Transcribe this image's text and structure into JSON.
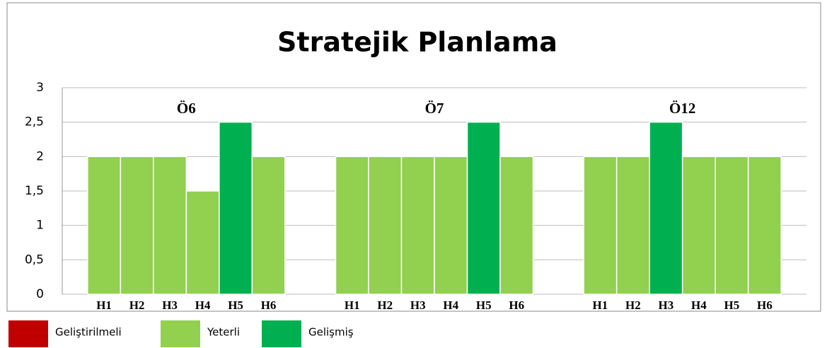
{
  "chart_data": {
    "type": "bar",
    "title": "Stratejik Planlama",
    "groups": [
      {
        "name": "Ö6",
        "categories": [
          "H1",
          "H2",
          "H3",
          "H4",
          "H5",
          "H6"
        ],
        "values": [
          2,
          2,
          2,
          1.5,
          2.5,
          2
        ],
        "colors": [
          "#92d050",
          "#92d050",
          "#92d050",
          "#92d050",
          "#00b050",
          "#92d050"
        ]
      },
      {
        "name": "Ö7",
        "categories": [
          "H1",
          "H2",
          "H3",
          "H4",
          "H5",
          "H6"
        ],
        "values": [
          2,
          2,
          2,
          2,
          2.5,
          2
        ],
        "colors": [
          "#92d050",
          "#92d050",
          "#92d050",
          "#92d050",
          "#00b050",
          "#92d050"
        ]
      },
      {
        "name": "Ö12",
        "categories": [
          "H1",
          "H2",
          "H3",
          "H4",
          "H5",
          "H6"
        ],
        "values": [
          2,
          2,
          2.5,
          2,
          2,
          2
        ],
        "colors": [
          "#92d050",
          "#92d050",
          "#00b050",
          "#92d050",
          "#92d050",
          "#92d050"
        ]
      }
    ],
    "legend": [
      {
        "name": "Geliştirilmeli",
        "color": "#c00000"
      },
      {
        "name": "Yeterli",
        "color": "#92d050"
      },
      {
        "name": "Gelişmiş",
        "color": "#00b050"
      }
    ],
    "ylim": [
      0,
      3
    ],
    "yticks": [
      0,
      {
        "value": 0.5,
        "label": "0,5"
      },
      1,
      {
        "value": 1.5,
        "label": "1,5"
      },
      2,
      {
        "value": 2.5,
        "label": "2,5"
      },
      3
    ],
    "grid": true
  }
}
